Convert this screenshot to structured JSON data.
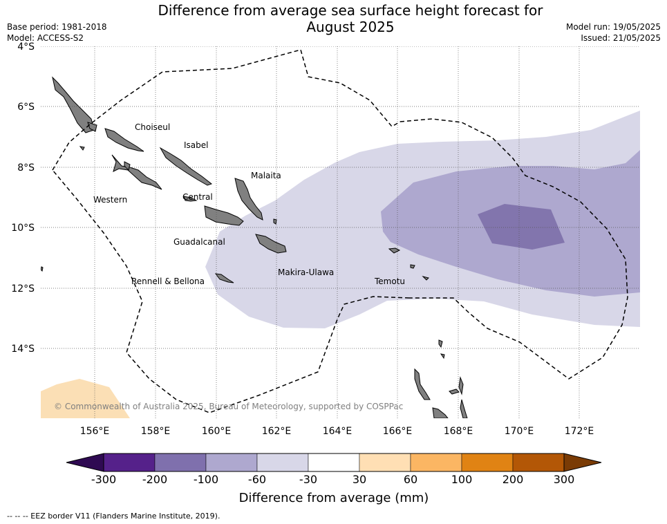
{
  "title_line1": "Difference from average sea surface height forecast for",
  "title_line2": "August 2025",
  "base_period": "Base period: 1981-2018",
  "model": "Model: ACCESS-S2",
  "model_run": "Model run: 19/05/2025",
  "issued": "Issued: 21/05/2025",
  "lat_labels": [
    "4°S",
    "6°S",
    "8°S",
    "10°S",
    "12°S",
    "14°S"
  ],
  "lon_labels": [
    "156°E",
    "158°E",
    "160°E",
    "162°E",
    "164°E",
    "166°E",
    "168°E",
    "170°E",
    "172°E"
  ],
  "places": {
    "choiseul": "Choiseul",
    "isabel": "Isabel",
    "malaita": "Malaita",
    "western": "Western",
    "central": "Central",
    "guadalcanal": "Guadalcanal",
    "makira": "Makira-Ulawa",
    "temotu": "Temotu",
    "rennell": "Rennell & Bellona"
  },
  "credit": "© Commonwealth of Australia 2025, Bureau of Meteorology, supported by COSPPac",
  "colorbar": {
    "title": "Difference from average (mm)",
    "ticks": [
      "-300",
      "-200",
      "-100",
      "-60",
      "-30",
      "30",
      "60",
      "100",
      "200",
      "300"
    ],
    "colors": [
      "#55218a",
      "#7f70ad",
      "#aea8cf",
      "#d8d7e8",
      "#ffffff",
      "#ffdfb4",
      "#fbb663",
      "#e08314",
      "#b35706"
    ],
    "under_color": "#2f0a52",
    "over_color": "#7a3b05"
  },
  "legend_footer": "--  --  -- EEZ border V11 (Flanders Marine Institute, 2019).",
  "field_colors": {
    "neg_60": "#d8d7e8",
    "neg_100": "#aea8cf",
    "neg_200": "#8275ad",
    "pos_60": "#fbdfb5",
    "land": "#808080"
  }
}
